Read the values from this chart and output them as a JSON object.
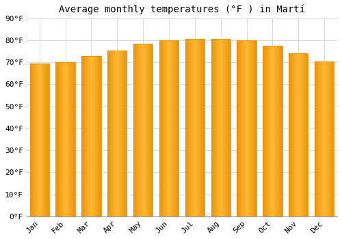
{
  "title": "Average monthly temperatures (°F ) in Martí",
  "months": [
    "Jan",
    "Feb",
    "Mar",
    "Apr",
    "May",
    "Jun",
    "Jul",
    "Aug",
    "Sep",
    "Oct",
    "Nov",
    "Dec"
  ],
  "values": [
    69.5,
    70.0,
    73.0,
    75.5,
    78.5,
    80.0,
    80.5,
    80.5,
    80.0,
    77.5,
    74.0,
    70.5
  ],
  "bar_color_center": "#FFB833",
  "bar_color_edge": "#E8940A",
  "background_color": "#FFFFFF",
  "ylim": [
    0,
    90
  ],
  "yticks": [
    0,
    10,
    20,
    30,
    40,
    50,
    60,
    70,
    80,
    90
  ],
  "grid_color": "#DDDDDD",
  "title_fontsize": 10,
  "tick_fontsize": 8,
  "font_family": "monospace",
  "figsize": [
    5.0,
    3.5
  ],
  "dpi": 100
}
